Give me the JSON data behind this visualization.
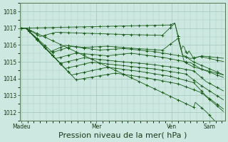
{
  "bg_color": "#cce8e0",
  "grid_color": "#aaccc0",
  "line_color": "#1a5c1a",
  "xlabel": "Pression niveau de la mer( hPa )",
  "xlabel_fontsize": 8,
  "ylim": [
    1011.5,
    1018.5
  ],
  "yticks": [
    1012,
    1013,
    1014,
    1015,
    1016,
    1017,
    1018
  ],
  "xtick_labels": [
    "Madeu",
    "Mer",
    "Ven",
    "Sam"
  ],
  "xtick_positions": [
    0,
    48,
    96,
    120
  ],
  "total_points": 130
}
